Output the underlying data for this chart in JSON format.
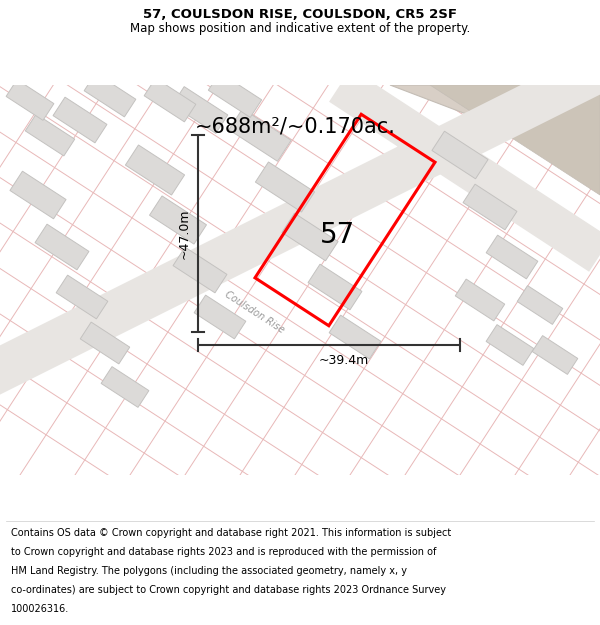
{
  "title_line1": "57, COULSDON RISE, COULSDON, CR5 2SF",
  "title_line2": "Map shows position and indicative extent of the property.",
  "area_label": "~688m²/~0.170ac.",
  "dim_vertical": "~47.0m",
  "dim_horizontal": "~39.4m",
  "property_number": "57",
  "footer_lines": [
    "Contains OS data © Crown copyright and database right 2021. This information is subject",
    "to Crown copyright and database rights 2023 and is reproduced with the permission of",
    "HM Land Registry. The polygons (including the associated geometry, namely x, y",
    "co-ordinates) are subject to Crown copyright and database rights 2023 Ordnance Survey",
    "100026316."
  ],
  "map_bg": "#f2f0ee",
  "building_fill": "#dcdad8",
  "building_edge": "#c4c2c0",
  "property_color": "#ff0000",
  "dim_color": "#333333",
  "road_fill": "#e8e5e2",
  "pink_line": "#e8b8b8",
  "beige_fill": "#d8cfc6",
  "beige_edge": "#c4bdb5",
  "street_color": "#999999",
  "title_size": 9.5,
  "subtitle_size": 8.5,
  "area_size": 15,
  "dim_size": 9,
  "property_num_size": 20,
  "street_size": 7,
  "footer_size": 7.0
}
